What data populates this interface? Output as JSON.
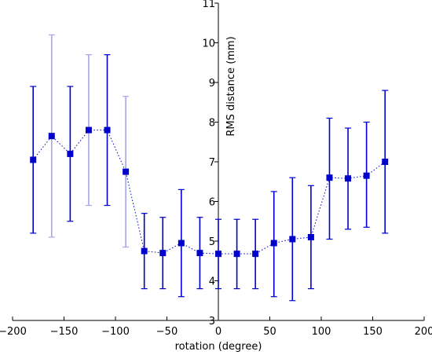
{
  "chart_data": {
    "type": "scatter",
    "title": "",
    "xlabel": "rotation (degree)",
    "ylabel": "RMS distance (mm)",
    "xlim": [
      -200,
      200
    ],
    "ylim": [
      3,
      11
    ],
    "xticks": [
      -200,
      -150,
      -100,
      -50,
      0,
      50,
      100,
      150,
      200
    ],
    "yticks": [
      3,
      4,
      5,
      6,
      7,
      8,
      9,
      10,
      11
    ],
    "grid": false,
    "series": [
      {
        "marker": "square",
        "line_style": "dotted",
        "color": "#0000cc",
        "points": [
          {
            "x": -180,
            "y": 7.05,
            "err_low": 5.2,
            "err_high": 8.9,
            "faded": false
          },
          {
            "x": -162,
            "y": 7.65,
            "err_low": 5.1,
            "err_high": 10.2,
            "faded": true
          },
          {
            "x": -144,
            "y": 7.2,
            "err_low": 5.5,
            "err_high": 8.9,
            "faded": false
          },
          {
            "x": -126,
            "y": 7.8,
            "err_low": 5.9,
            "err_high": 9.7,
            "faded": true
          },
          {
            "x": -108,
            "y": 7.8,
            "err_low": 5.9,
            "err_high": 9.7,
            "faded": false
          },
          {
            "x": -90,
            "y": 6.75,
            "err_low": 4.85,
            "err_high": 8.65,
            "faded": true
          },
          {
            "x": -72,
            "y": 4.75,
            "err_low": 3.8,
            "err_high": 5.7,
            "faded": false
          },
          {
            "x": -54,
            "y": 4.7,
            "err_low": 3.8,
            "err_high": 5.6,
            "faded": false
          },
          {
            "x": -36,
            "y": 4.95,
            "err_low": 3.6,
            "err_high": 6.3,
            "faded": false
          },
          {
            "x": -18,
            "y": 4.7,
            "err_low": 3.8,
            "err_high": 5.6,
            "faded": false
          },
          {
            "x": 0,
            "y": 4.68,
            "err_low": 3.8,
            "err_high": 5.55,
            "faded": false
          },
          {
            "x": 18,
            "y": 4.68,
            "err_low": 3.8,
            "err_high": 5.55,
            "faded": false
          },
          {
            "x": 36,
            "y": 4.68,
            "err_low": 3.8,
            "err_high": 5.55,
            "faded": false
          },
          {
            "x": 54,
            "y": 4.95,
            "err_low": 3.6,
            "err_high": 6.25,
            "faded": false
          },
          {
            "x": 72,
            "y": 5.05,
            "err_low": 3.5,
            "err_high": 6.6,
            "faded": false
          },
          {
            "x": 90,
            "y": 5.1,
            "err_low": 3.8,
            "err_high": 6.4,
            "faded": false
          },
          {
            "x": 108,
            "y": 6.6,
            "err_low": 5.05,
            "err_high": 8.1,
            "faded": false
          },
          {
            "x": 126,
            "y": 6.58,
            "err_low": 5.3,
            "err_high": 7.85,
            "faded": false
          },
          {
            "x": 144,
            "y": 6.65,
            "err_low": 5.35,
            "err_high": 8.0,
            "faded": false
          },
          {
            "x": 162,
            "y": 7.0,
            "err_low": 5.2,
            "err_high": 8.8,
            "faded": false
          }
        ]
      }
    ]
  }
}
